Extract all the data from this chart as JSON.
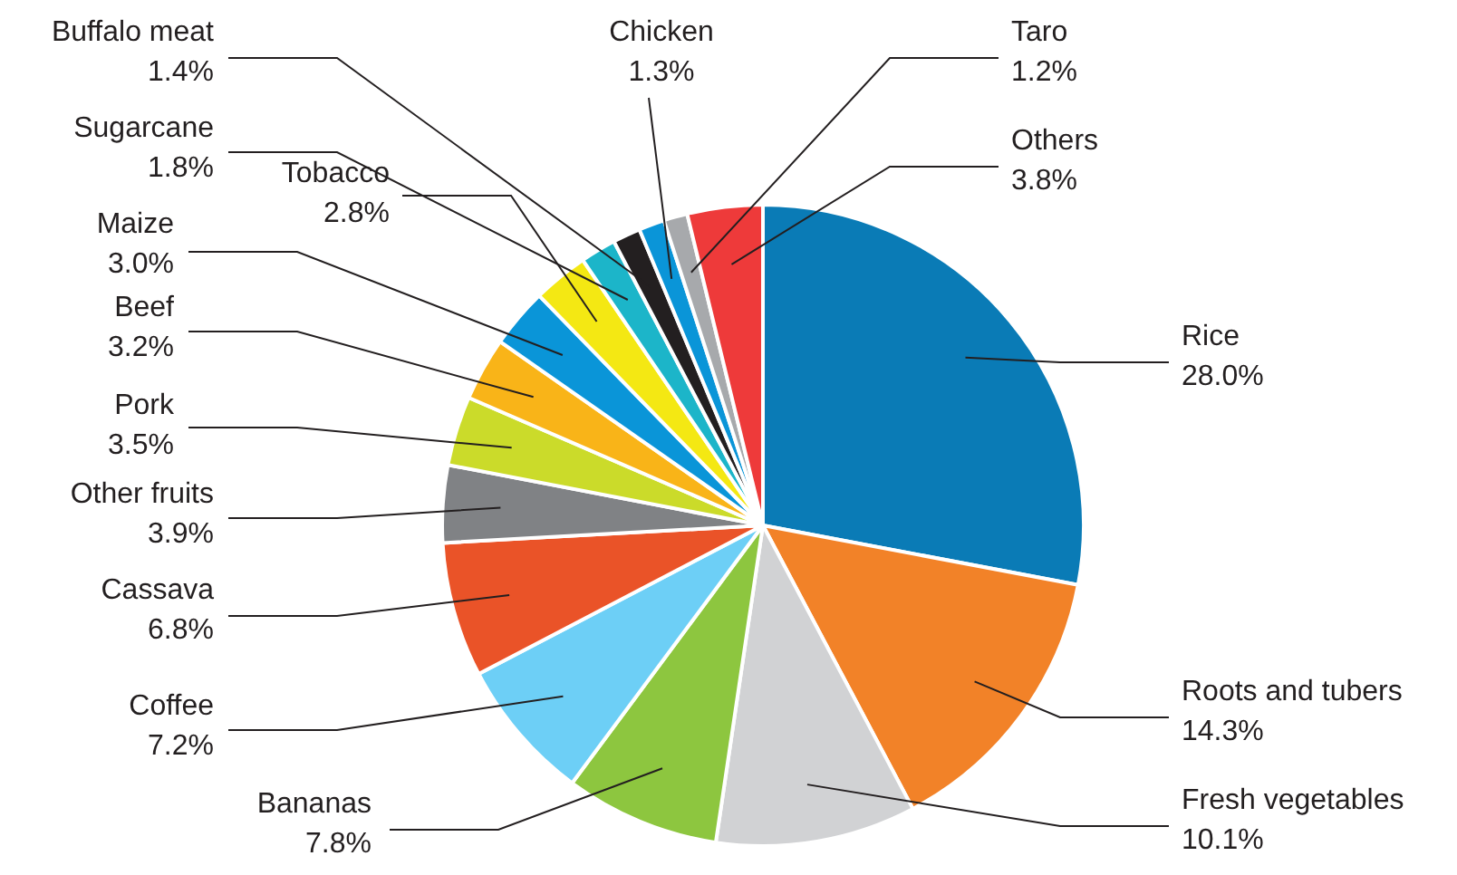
{
  "chart_data": {
    "type": "pie",
    "categories": [
      "Rice",
      "Roots and tubers",
      "Fresh vegetables",
      "Bananas",
      "Coffee",
      "Cassava",
      "Other fruits",
      "Pork",
      "Beef",
      "Maize",
      "Tobacco",
      "Sugarcane",
      "Buffalo meat",
      "Chicken",
      "Taro",
      "Others"
    ],
    "values": [
      28.0,
      14.3,
      10.1,
      7.8,
      7.2,
      6.8,
      3.9,
      3.5,
      3.2,
      3.0,
      2.8,
      1.8,
      1.4,
      1.3,
      1.2,
      3.8
    ],
    "value_labels": [
      "28.0%",
      "14.3%",
      "10.1%",
      "7.8%",
      "7.2%",
      "6.8%",
      "3.9%",
      "3.5%",
      "3.2%",
      "3.0%",
      "2.8%",
      "1.8%",
      "1.4%",
      "1.3%",
      "1.2%",
      "3.8%"
    ],
    "colors": [
      "#0a7bb6",
      "#f28228",
      "#d1d2d4",
      "#8dc63f",
      "#6dcff6",
      "#ea5328",
      "#808285",
      "#cbdb2a",
      "#f9b418",
      "#0a95d8",
      "#f4e813",
      "#1cb5c9",
      "#231f20",
      "#0a95d8",
      "#a7a9ac",
      "#ee3a3a"
    ],
    "legend": false
  }
}
